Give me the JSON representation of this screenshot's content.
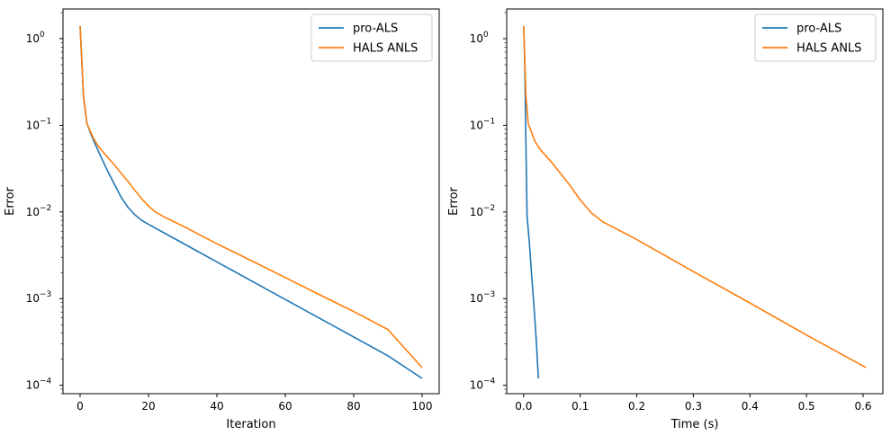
{
  "colors": {
    "pro_als": "#1f77b4",
    "hals_anls": "#ff7f0e"
  },
  "chart_data": [
    {
      "type": "line",
      "xlabel": "Iteration",
      "ylabel": "Error",
      "yscale": "log",
      "xlim": [
        -5,
        105
      ],
      "ylim": [
        8e-05,
        2.2
      ],
      "xticks": [
        0,
        20,
        40,
        60,
        80,
        100
      ],
      "xtick_labels": [
        "0",
        "20",
        "40",
        "60",
        "80",
        "100"
      ],
      "ytick_exponents": [
        -4,
        -3,
        -2,
        -1,
        0
      ],
      "ytick_labels": [
        "10",
        "10",
        "10",
        "10",
        "10"
      ],
      "ytick_superscripts": [
        "−4",
        "−3",
        "−2",
        "−1",
        "0"
      ],
      "legend_placement": "upper right",
      "series": [
        {
          "name": "pro-ALS",
          "color": "#1f77b4",
          "x": [
            0,
            1,
            2,
            3,
            4,
            5,
            6,
            8,
            10,
            12,
            14,
            16,
            18,
            20,
            30,
            40,
            50,
            60,
            70,
            80,
            90,
            100
          ],
          "y": [
            1.4,
            0.21,
            0.105,
            0.082,
            0.066,
            0.054,
            0.044,
            0.03,
            0.021,
            0.0148,
            0.0113,
            0.0093,
            0.008,
            0.0072,
            0.00437,
            0.00265,
            0.00161,
            0.000978,
            0.000594,
            0.000361,
            0.000219,
            0.00012
          ]
        },
        {
          "name": "HALS ANLS",
          "color": "#ff7f0e",
          "x": [
            0,
            1,
            2,
            3,
            4,
            5,
            6,
            8,
            10,
            12,
            14,
            16,
            18,
            20,
            22,
            25,
            30,
            40,
            50,
            60,
            70,
            80,
            90,
            100
          ],
          "y": [
            1.4,
            0.22,
            0.105,
            0.085,
            0.07,
            0.06,
            0.053,
            0.043,
            0.035,
            0.028,
            0.0225,
            0.0178,
            0.0142,
            0.0117,
            0.01,
            0.0086,
            0.0069,
            0.0043,
            0.00275,
            0.00175,
            0.00111,
            0.00071,
            0.00044,
            0.00016
          ]
        }
      ]
    },
    {
      "type": "line",
      "xlabel": "Time (s)",
      "ylabel": "Error",
      "yscale": "log",
      "xlim": [
        -0.03,
        0.635
      ],
      "ylim": [
        8e-05,
        2.2
      ],
      "xticks": [
        0.0,
        0.1,
        0.2,
        0.3,
        0.4,
        0.5,
        0.6
      ],
      "xtick_labels": [
        "0.0",
        "0.1",
        "0.2",
        "0.3",
        "0.4",
        "0.5",
        "0.6"
      ],
      "ytick_exponents": [
        -4,
        -3,
        -2,
        -1,
        0
      ],
      "ytick_labels": [
        "10",
        "10",
        "10",
        "10",
        "10"
      ],
      "ytick_superscripts": [
        "−4",
        "−3",
        "−2",
        "−1",
        "0"
      ],
      "legend_placement": "upper right",
      "series": [
        {
          "name": "pro-ALS",
          "color": "#1f77b4",
          "x": [
            0.0,
            0.002,
            0.004,
            0.006,
            0.01,
            0.014,
            0.018,
            0.022,
            0.026
          ],
          "y": [
            1.4,
            0.5,
            0.06,
            0.009,
            0.0045,
            0.0019,
            0.00085,
            0.00035,
            0.00012
          ]
        },
        {
          "name": "HALS ANLS",
          "color": "#ff7f0e",
          "x": [
            0.0,
            0.004,
            0.008,
            0.012,
            0.02,
            0.03,
            0.05,
            0.08,
            0.1,
            0.12,
            0.14,
            0.2,
            0.3,
            0.4,
            0.5,
            0.605
          ],
          "y": [
            1.4,
            0.22,
            0.105,
            0.09,
            0.065,
            0.052,
            0.037,
            0.021,
            0.0138,
            0.0097,
            0.0077,
            0.0048,
            0.00205,
            0.00089,
            0.00038,
            0.00016
          ]
        }
      ]
    }
  ]
}
